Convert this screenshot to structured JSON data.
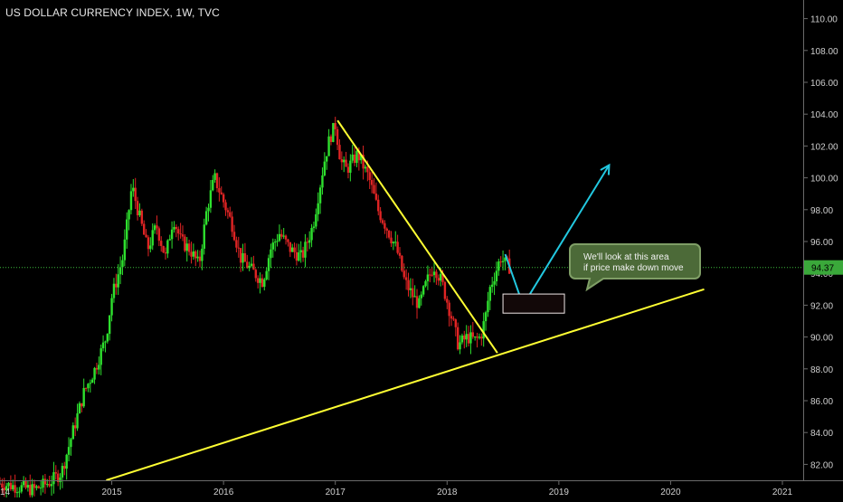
{
  "header": {
    "title": "US DOLLAR CURRENCY INDEX, 1W, TVC"
  },
  "callout": {
    "line1": "We'll look at this area",
    "line2": "if price make down move"
  },
  "price_tag": {
    "value": "94.37"
  },
  "colors": {
    "background": "#000000",
    "up": "#2ee02e",
    "down": "#e02424",
    "trendline": "#ffff33",
    "projection": "#22c8e0",
    "price_line": "#3dbb3d",
    "callout_fill": "#4c6a38",
    "axis_text": "#cfcfcf"
  },
  "chart_data": {
    "type": "candlestick",
    "title": "US DOLLAR CURRENCY INDEX, 1W, TVC",
    "x_ticks": [
      "14",
      "2015",
      "2016",
      "2017",
      "2018",
      "2019",
      "2020",
      "2021"
    ],
    "y_ticks": [
      "82.00",
      "84.00",
      "86.00",
      "88.00",
      "90.00",
      "92.00",
      "94.00",
      "96.00",
      "98.00",
      "100.00",
      "102.00",
      "104.00",
      "106.00",
      "108.00",
      "110.00"
    ],
    "ylim": [
      81.0,
      111.0
    ],
    "current_price": 94.37,
    "grid": false,
    "price_path": [
      [
        2014.0,
        80.8
      ],
      [
        2014.3,
        80.4
      ],
      [
        2014.45,
        80.9
      ],
      [
        2014.55,
        81.5
      ],
      [
        2014.65,
        84.0
      ],
      [
        2014.75,
        86.5
      ],
      [
        2014.85,
        88.0
      ],
      [
        2014.95,
        90.0
      ],
      [
        2015.0,
        92.5
      ],
      [
        2015.1,
        95.0
      ],
      [
        2015.18,
        99.5
      ],
      [
        2015.25,
        97.5
      ],
      [
        2015.32,
        95.5
      ],
      [
        2015.4,
        97.0
      ],
      [
        2015.48,
        95.0
      ],
      [
        2015.55,
        97.5
      ],
      [
        2015.62,
        96.0
      ],
      [
        2015.7,
        95.5
      ],
      [
        2015.78,
        94.5
      ],
      [
        2015.85,
        98.0
      ],
      [
        2015.92,
        100.0
      ],
      [
        2016.0,
        98.5
      ],
      [
        2016.08,
        97.0
      ],
      [
        2016.15,
        95.0
      ],
      [
        2016.25,
        94.2
      ],
      [
        2016.35,
        93.5
      ],
      [
        2016.42,
        95.5
      ],
      [
        2016.5,
        96.5
      ],
      [
        2016.6,
        95.5
      ],
      [
        2016.7,
        95.0
      ],
      [
        2016.8,
        97.0
      ],
      [
        2016.85,
        99.0
      ],
      [
        2016.9,
        101.0
      ],
      [
        2016.95,
        102.5
      ],
      [
        2017.0,
        103.3
      ],
      [
        2017.05,
        101.0
      ],
      [
        2017.1,
        100.5
      ],
      [
        2017.2,
        101.5
      ],
      [
        2017.3,
        100.0
      ],
      [
        2017.38,
        98.0
      ],
      [
        2017.45,
        97.0
      ],
      [
        2017.55,
        95.5
      ],
      [
        2017.62,
        93.5
      ],
      [
        2017.7,
        92.5
      ],
      [
        2017.75,
        92.0
      ],
      [
        2017.82,
        93.5
      ],
      [
        2017.88,
        94.5
      ],
      [
        2017.95,
        93.5
      ],
      [
        2018.05,
        91.0
      ],
      [
        2018.1,
        89.5
      ],
      [
        2018.18,
        90.0
      ],
      [
        2018.25,
        89.8
      ],
      [
        2018.3,
        90.0
      ],
      [
        2018.35,
        91.5
      ],
      [
        2018.38,
        93.0
      ],
      [
        2018.43,
        94.0
      ],
      [
        2018.48,
        95.0
      ],
      [
        2018.52,
        94.6
      ],
      [
        2018.56,
        94.4
      ]
    ],
    "annotations": [
      {
        "type": "trendline",
        "points": [
          [
            2014.95,
            81.0
          ],
          [
            2020.3,
            93.0
          ]
        ]
      },
      {
        "type": "trendline",
        "points": [
          [
            2017.02,
            103.6
          ],
          [
            2018.45,
            89.0
          ]
        ]
      },
      {
        "type": "arrow",
        "points": [
          [
            2018.52,
            95.2
          ],
          [
            2018.68,
            92.0
          ],
          [
            2019.45,
            100.8
          ]
        ]
      },
      {
        "type": "zone",
        "x": [
          2018.5,
          2019.05
        ],
        "y": [
          91.5,
          92.7
        ]
      },
      {
        "type": "callout",
        "text": "We'll look at this area if price make down move",
        "x": 2019.3,
        "y": 94.5
      }
    ]
  }
}
